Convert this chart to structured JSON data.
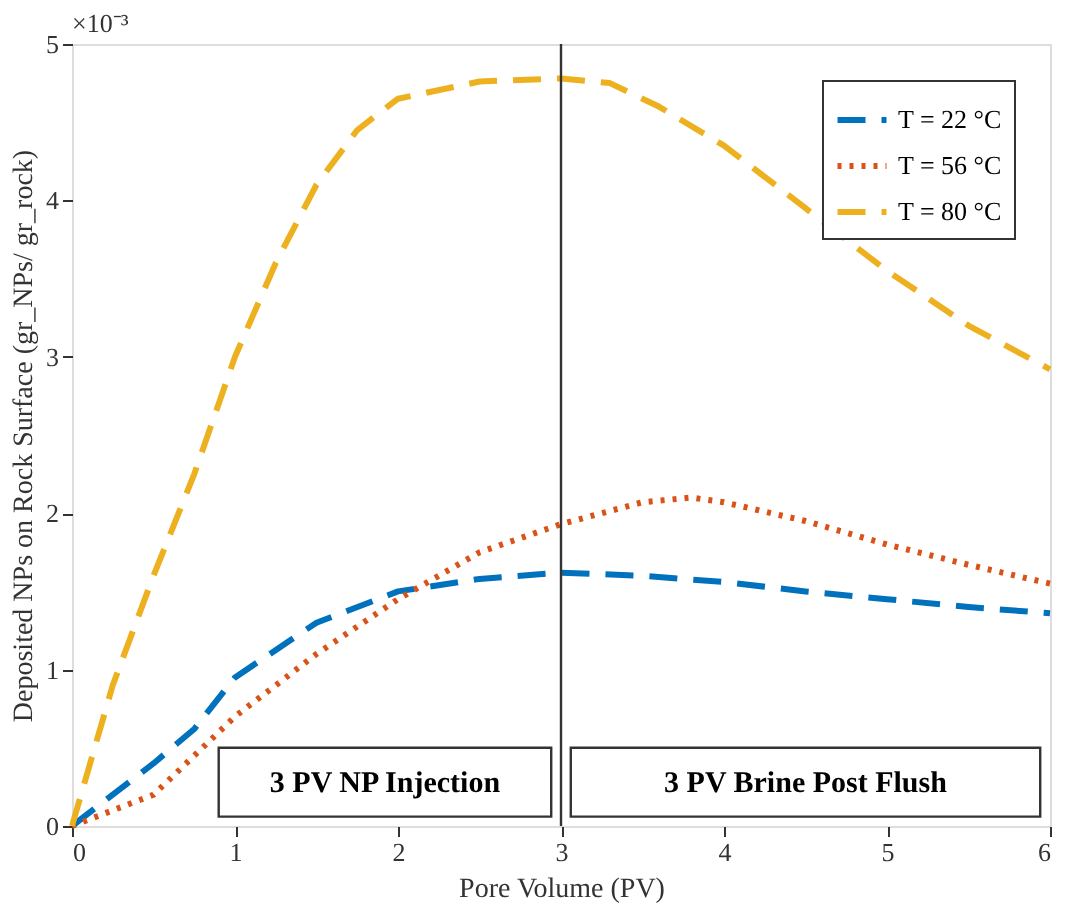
{
  "chart_data": {
    "type": "line",
    "xlabel": "Pore Volume (PV)",
    "ylabel": "Deposited NPs on Rock Surface (gr_NPs/ gr_rock)",
    "xlim": [
      0,
      6
    ],
    "xticks": [
      0,
      1,
      2,
      3,
      4,
      5,
      6
    ],
    "ylim": [
      0,
      5
    ],
    "yticks": [
      0,
      1,
      2,
      3,
      4,
      5
    ],
    "grid": false,
    "legend": "top right",
    "ref_lines": [
      {
        "axis": "x",
        "value": 3,
        "color": "#333333"
      }
    ],
    "annotations": [
      "3 PV NP Injection",
      "3 PV Brine Post Flush",
      "×10⁻³"
    ],
    "series": [
      {
        "name": "T = 22 °C",
        "color": "#0072bd",
        "line_style": "dashed",
        "x": [
          0,
          0.5,
          0.75,
          1.0,
          1.5,
          2.0,
          2.5,
          3.0,
          3.5,
          4.0,
          4.5,
          5.0,
          5.5,
          6.0
        ],
        "values": [
          0,
          0.4,
          0.62,
          0.95,
          1.3,
          1.5,
          1.58,
          1.62,
          1.6,
          1.56,
          1.5,
          1.45,
          1.4,
          1.36
        ]
      },
      {
        "name": "T = 56 °C",
        "color": "#d95319",
        "line_style": "dotted",
        "x": [
          0,
          0.5,
          0.75,
          1.0,
          1.5,
          2.0,
          2.5,
          3.0,
          3.5,
          3.8,
          4.0,
          4.5,
          5.0,
          5.5,
          6.0
        ],
        "values": [
          0,
          0.2,
          0.45,
          0.7,
          1.1,
          1.45,
          1.75,
          1.93,
          2.07,
          2.1,
          2.07,
          1.95,
          1.8,
          1.67,
          1.55
        ]
      },
      {
        "name": "T = 80 °C",
        "color": "#edb120",
        "line_style": "dashed",
        "x": [
          0,
          0.25,
          0.5,
          0.75,
          1.0,
          1.25,
          1.5,
          1.75,
          2.0,
          2.5,
          3.0,
          3.3,
          3.6,
          4.0,
          4.5,
          5.0,
          5.5,
          6.0
        ],
        "values": [
          0,
          0.9,
          1.6,
          2.25,
          3.0,
          3.6,
          4.1,
          4.45,
          4.65,
          4.76,
          4.78,
          4.75,
          4.6,
          4.35,
          3.95,
          3.55,
          3.2,
          2.92
        ]
      }
    ]
  }
}
